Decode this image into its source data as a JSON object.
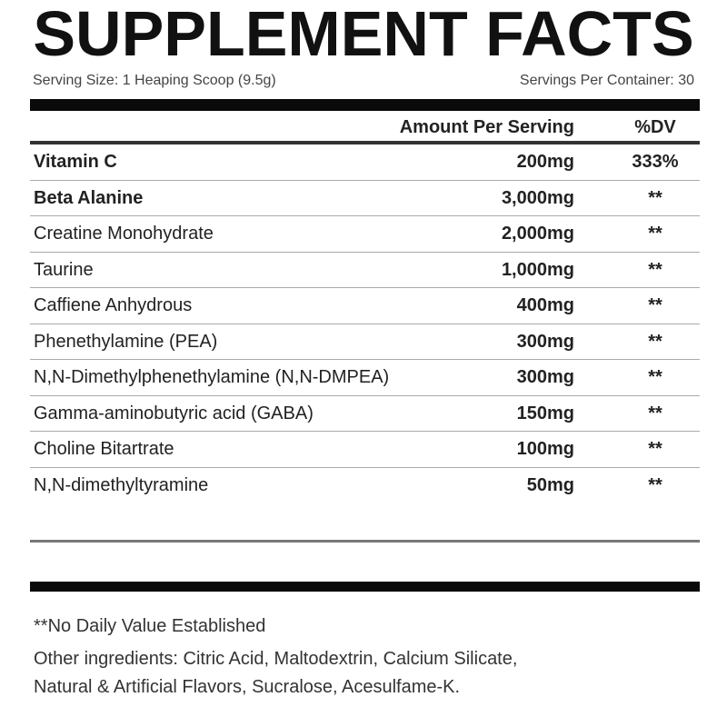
{
  "title": "SUPPLEMENT FACTS",
  "serving_size": "Serving Size: 1 Heaping Scoop (9.5g)",
  "servings_per_container": "Servings Per Container: 30",
  "header": {
    "amount": "Amount Per Serving",
    "dv": "%DV"
  },
  "rows": [
    {
      "name": "Vitamin C",
      "amount": "200mg",
      "dv": "333%"
    },
    {
      "name": "Beta Alanine",
      "amount": "3,000mg",
      "dv": "**"
    },
    {
      "name": "Creatine Monohydrate",
      "amount": "2,000mg",
      "dv": "**"
    },
    {
      "name": "Taurine",
      "amount": "1,000mg",
      "dv": "**"
    },
    {
      "name": "Caffiene Anhydrous",
      "amount": "400mg",
      "dv": "**"
    },
    {
      "name": "Phenethylamine (PEA)",
      "amount": "300mg",
      "dv": "**"
    },
    {
      "name": "N,N-Dimethylphenethylamine (N,N-DMPEA)",
      "amount": "300mg",
      "dv": "**"
    },
    {
      "name": "Gamma-aminobutyric acid (GABA)",
      "amount": "150mg",
      "dv": "**"
    },
    {
      "name": "Choline Bitartrate",
      "amount": "100mg",
      "dv": "**"
    },
    {
      "name": "N,N-dimethyltyramine",
      "amount": "50mg",
      "dv": "**"
    }
  ],
  "footnote": "**No Daily Value Established",
  "other_ingredients_line1": "Other ingredients: Citric Acid, Maltodextrin, Calcium Silicate,",
  "other_ingredients_line2": "Natural & Artificial Flavors, Sucralose, Acesulfame-K."
}
